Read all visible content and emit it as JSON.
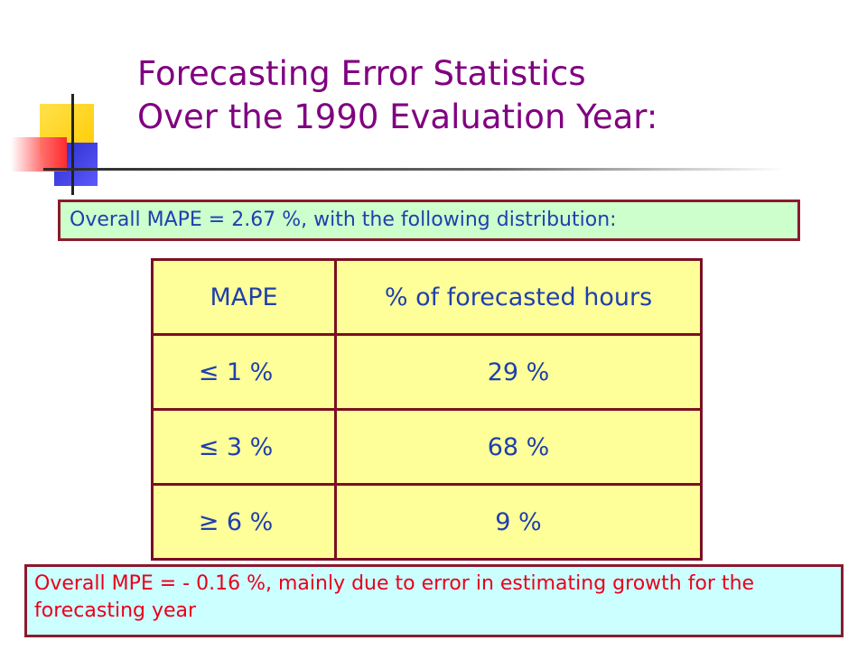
{
  "title": {
    "line1": "Forecasting Error Statistics",
    "line2": "Over the 1990 Evaluation Year:"
  },
  "mape_summary": "Overall MAPE = 2.67 %, with the following distribution:",
  "table": {
    "headers": [
      "MAPE",
      "% of forecasted hours"
    ],
    "rows": [
      {
        "mape": "≤ 1 %",
        "hours": "29 %"
      },
      {
        "mape": "≤ 3 %",
        "hours": "68 %"
      },
      {
        "mape": "≥ 6 %",
        "hours": "9 %"
      }
    ]
  },
  "mpe_summary": "Overall MPE = - 0.16 %, mainly due to error in estimating growth for the forecasting year",
  "colors": {
    "title": "#800080",
    "body_text": "#1f3fae",
    "mpe_text": "#e8001c",
    "border": "#8b1a2e",
    "table_fill": "#ffff99",
    "mape_box_fill": "#ccffcc",
    "mpe_box_fill": "#ccffff"
  }
}
